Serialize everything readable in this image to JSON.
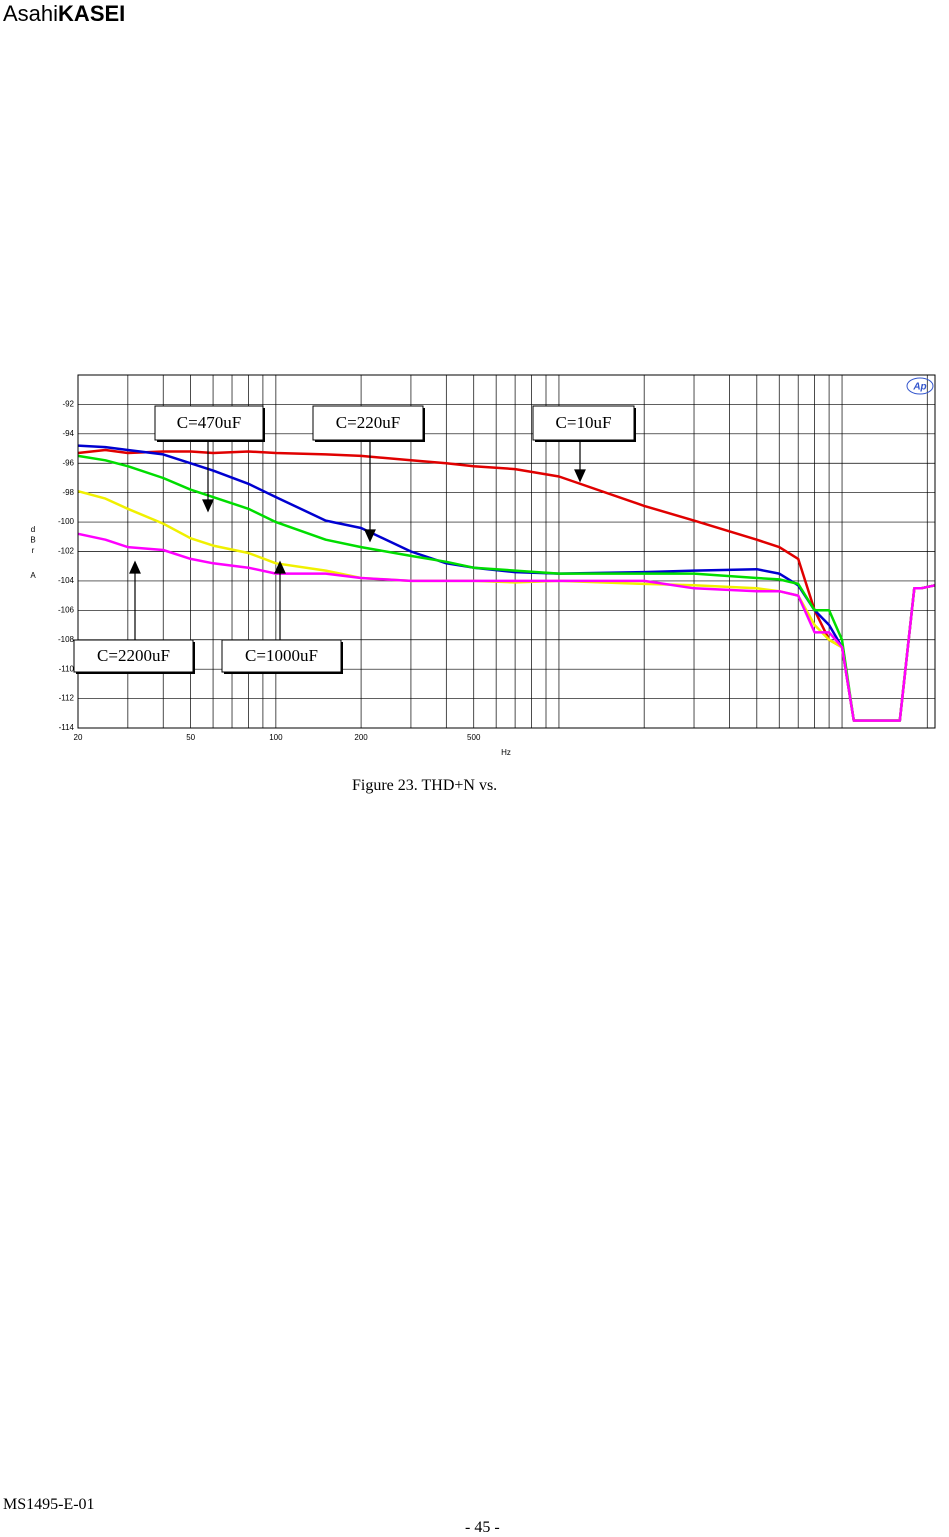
{
  "header": {
    "logo_light": "Asahi",
    "logo_bold": "KASEI"
  },
  "chart_data": {
    "type": "line",
    "xscale": "log",
    "x": [
      20,
      25,
      30,
      40,
      50,
      60,
      80,
      100,
      150,
      200,
      300,
      400,
      500,
      700,
      1000,
      2000,
      3000,
      5000,
      6000,
      7000,
      8000,
      9000,
      10000,
      11000,
      13000,
      16000,
      18000,
      19000,
      21300
    ],
    "series": [
      {
        "color": "#e00000",
        "values": [
          -95.3,
          -95.1,
          -95.3,
          -95.2,
          -95.2,
          -95.3,
          -95.2,
          -95.3,
          -95.4,
          -95.5,
          -95.8,
          -96.0,
          -96.2,
          -96.4,
          -96.9,
          -98.9,
          -99.9,
          -101.2,
          -101.7,
          -102.5,
          -106,
          -108,
          -108.5,
          -113.5,
          -113.5,
          -113.5,
          -104.5,
          -104.5,
          -104.3
        ]
      },
      {
        "color": "#0000d0",
        "values": [
          -94.8,
          -94.9,
          -95.1,
          -95.4,
          -96.0,
          -96.5,
          -97.4,
          -98.3,
          -99.9,
          -100.4,
          -102.0,
          -102.8,
          -103.1,
          -103.4,
          -103.5,
          -103.4,
          -103.3,
          -103.2,
          -103.5,
          -104.3,
          -106,
          -107,
          -108.5,
          -113.5,
          -113.5,
          -113.5,
          -104.5,
          -104.5,
          -104.3
        ]
      },
      {
        "color": "#00dd00",
        "values": [
          -95.5,
          -95.8,
          -96.2,
          -97.0,
          -97.8,
          -98.3,
          -99.1,
          -100.0,
          -101.2,
          -101.7,
          -102.3,
          -102.7,
          -103.1,
          -103.3,
          -103.5,
          -103.5,
          -103.5,
          -103.8,
          -103.9,
          -104.2,
          -106,
          -106,
          -108,
          -113.5,
          -113.5,
          -113.5,
          -104.5,
          -104.5,
          -104.3
        ]
      },
      {
        "color": "#f0f000",
        "values": [
          -97.9,
          -98.4,
          -99.1,
          -100.1,
          -101.1,
          -101.6,
          -102.1,
          -102.8,
          -103.3,
          -103.8,
          -104.0,
          -104.0,
          -104.0,
          -104.1,
          -104.0,
          -104.2,
          -104.3,
          -104.5,
          -104.7,
          -105,
          -107,
          -108,
          -108.5,
          -113.5,
          -113.5,
          -113.5,
          -104.5,
          -104.5,
          -104.3
        ]
      },
      {
        "color": "#ff00ff",
        "values": [
          -100.8,
          -101.2,
          -101.7,
          -101.9,
          -102.5,
          -102.8,
          -103.1,
          -103.5,
          -103.5,
          -103.8,
          -104.0,
          -104.0,
          -104.0,
          -104.0,
          -104.0,
          -104.0,
          -104.5,
          -104.7,
          -104.7,
          -105,
          -107.5,
          -107.5,
          -108.5,
          -113.5,
          -113.5,
          -113.5,
          -104.5,
          -104.5,
          -104.3
        ]
      }
    ],
    "annotations": [
      "C=470uF",
      "C=220uF",
      "C=10uF",
      "C=2200uF",
      "C=1000uF"
    ],
    "ylabel": "dBr",
    "ylabel_unit": "A",
    "xlabel": "Hz",
    "badge": "Ap",
    "xlim": [
      20,
      21300
    ],
    "ylim": [
      -114,
      -90
    ],
    "xticks": [
      20,
      50,
      100,
      200,
      500
    ],
    "xgrid": [
      30,
      40,
      60,
      70,
      80,
      90,
      300,
      400,
      600,
      700,
      800,
      900,
      1000,
      2000,
      3000,
      4000,
      5000,
      6000,
      7000,
      8000,
      9000,
      10000,
      20000
    ],
    "yticks": [
      -114,
      -112,
      -110,
      -108,
      -106,
      -104,
      -102,
      -100,
      -98,
      -96,
      -94,
      -92
    ],
    "grid": true
  },
  "caption": "Figure 23. THD+N vs.",
  "footer": {
    "doc_id": "MS1495-E-01",
    "page": "- 45 -"
  }
}
